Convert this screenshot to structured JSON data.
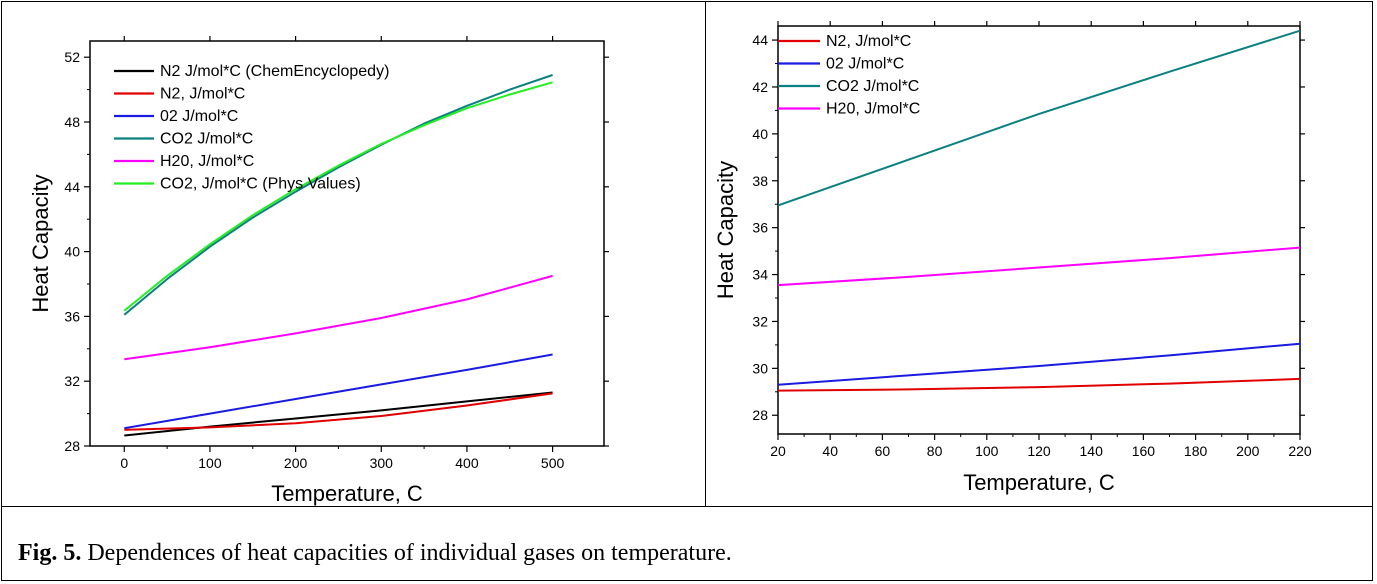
{
  "caption": {
    "label": "Fig. 5.",
    "text": "Dependences of heat capacities of individual gases on temperature."
  },
  "chart_data": [
    {
      "type": "line",
      "xlabel": "Temperature, C",
      "ylabel": "Heat Capacity",
      "xlim": [
        -40,
        560
      ],
      "ylim": [
        28,
        53
      ],
      "xticks": [
        0,
        100,
        200,
        300,
        400,
        500
      ],
      "yticks": [
        28,
        32,
        36,
        40,
        44,
        48,
        52
      ],
      "grid": false,
      "legend": "top-left",
      "series": [
        {
          "name": "N2 J/mol*C (ChemEncyclopedy)",
          "color": "#000000",
          "x": [
            0,
            100,
            200,
            300,
            400,
            500
          ],
          "y": [
            28.65,
            29.2,
            29.7,
            30.2,
            30.75,
            31.3
          ]
        },
        {
          "name": "N2, J/mol*C",
          "color": "#e00000",
          "x": [
            0,
            100,
            200,
            300,
            400,
            500
          ],
          "y": [
            29.0,
            29.15,
            29.4,
            29.85,
            30.5,
            31.25
          ]
        },
        {
          "name": "02 J/mol*C",
          "color": "#1a1ae0",
          "x": [
            0,
            100,
            200,
            300,
            400,
            500
          ],
          "y": [
            29.1,
            30.0,
            30.9,
            31.8,
            32.7,
            33.65
          ]
        },
        {
          "name": "CO2 J/mol*C",
          "color": "#0b8080",
          "x": [
            0,
            50,
            100,
            150,
            200,
            250,
            300,
            350,
            400,
            450,
            500
          ],
          "y": [
            36.1,
            38.3,
            40.3,
            42.1,
            43.7,
            45.2,
            46.6,
            47.9,
            49.0,
            50.0,
            50.9
          ]
        },
        {
          "name": "H20, J/mol*C",
          "color": "#ff00ff",
          "x": [
            0,
            100,
            200,
            300,
            400,
            500
          ],
          "y": [
            33.35,
            34.1,
            34.95,
            35.9,
            37.05,
            38.5
          ]
        },
        {
          "name": "CO2, J/mol*C (Phys Values)",
          "color": "#22ee22",
          "x": [
            0,
            50,
            100,
            150,
            200,
            250,
            300,
            350,
            400,
            450,
            500
          ],
          "y": [
            36.35,
            38.5,
            40.45,
            42.25,
            43.85,
            45.3,
            46.65,
            47.8,
            48.85,
            49.7,
            50.45
          ]
        }
      ]
    },
    {
      "type": "line",
      "xlabel": "Temperature, C",
      "ylabel": "Heat Capacity",
      "xlim": [
        20,
        220
      ],
      "ylim": [
        27.2,
        44.6
      ],
      "xticks": [
        20,
        40,
        60,
        80,
        100,
        120,
        140,
        160,
        180,
        200,
        220
      ],
      "yticks": [
        28,
        30,
        32,
        34,
        36,
        38,
        40,
        42,
        44
      ],
      "grid": false,
      "legend": "top-left",
      "series": [
        {
          "name": "N2, J/mol*C",
          "color": "#e00000",
          "x": [
            20,
            70,
            120,
            170,
            220
          ],
          "y": [
            29.05,
            29.1,
            29.2,
            29.35,
            29.55
          ]
        },
        {
          "name": "02 J/mol*C",
          "color": "#1a1ae0",
          "x": [
            20,
            70,
            120,
            170,
            220
          ],
          "y": [
            29.3,
            29.7,
            30.1,
            30.55,
            31.05
          ]
        },
        {
          "name": "CO2 J/mol*C",
          "color": "#0b8080",
          "x": [
            20,
            70,
            120,
            170,
            220
          ],
          "y": [
            36.95,
            38.9,
            40.85,
            42.65,
            44.4
          ]
        },
        {
          "name": "H20, J/mol*C",
          "color": "#ff00ff",
          "x": [
            20,
            70,
            120,
            170,
            220
          ],
          "y": [
            33.55,
            33.9,
            34.3,
            34.7,
            35.15
          ]
        }
      ]
    }
  ]
}
